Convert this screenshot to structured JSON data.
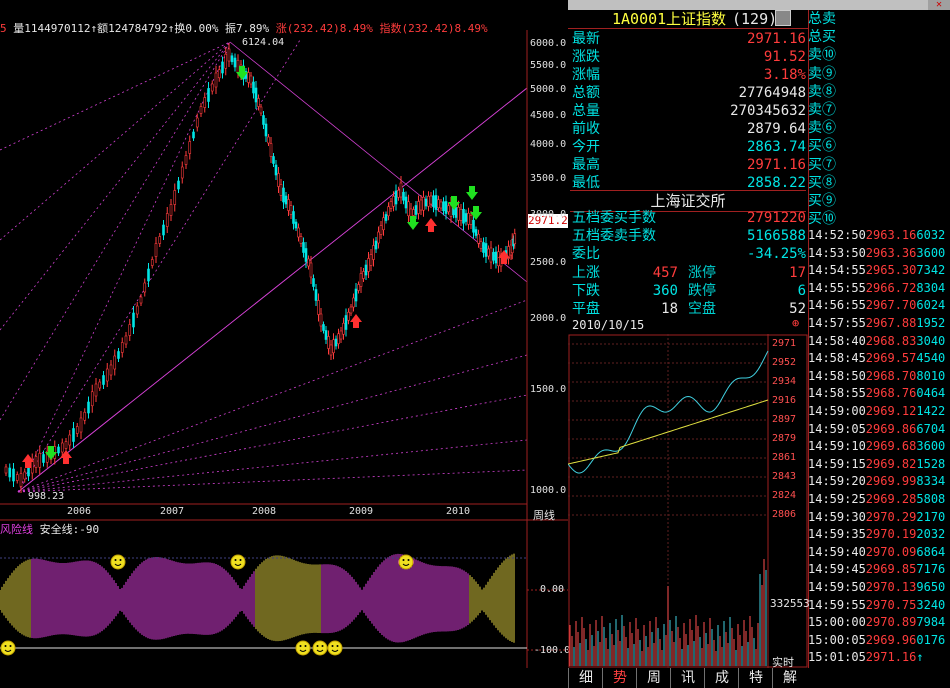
{
  "header": {
    "stats_line_left": "5",
    "stats_line": "量1144970112↑额124784792↑换0.00% 振7.89%",
    "change_line": "涨(232.42)8.49% 指数(232.42)8.49%",
    "peak_label": "6124.04",
    "low_label": "998.23"
  },
  "main_chart": {
    "price_axis": [
      "6000.0",
      "5500.0",
      "5000.0",
      "4500.0",
      "4000.0",
      "3500.0",
      "3000.0",
      "2500.0",
      "2000.0",
      "1500.0",
      "1000.0"
    ],
    "price_tag": "2971.2",
    "years": [
      "2006",
      "2007",
      "2008",
      "2009",
      "2010"
    ],
    "period_label": "周线",
    "indicator_title": "风险线",
    "indicator_safe": "安全线:-90",
    "indicator_axis": [
      "0.00",
      "-100.0"
    ],
    "colors": {
      "up": "#ff3c3c",
      "down": "#00e5e5",
      "fan": "#e040e0",
      "bg": "#000000"
    }
  },
  "quote": {
    "code": "1A0001",
    "name": "上证指数",
    "count": "(129)",
    "rows": [
      {
        "k": "最新",
        "v": "2971.16",
        "c": "red"
      },
      {
        "k": "涨跌",
        "v": "91.52",
        "c": "red"
      },
      {
        "k": "涨幅",
        "v": "3.18%",
        "c": "red"
      },
      {
        "k": "总额",
        "v": "27764948",
        "c": "white"
      },
      {
        "k": "总量",
        "v": "270345632",
        "c": "white"
      },
      {
        "k": "前收",
        "v": "2879.64",
        "c": "white"
      },
      {
        "k": "今开",
        "v": "2863.74",
        "c": "cyan"
      },
      {
        "k": "最高",
        "v": "2971.16",
        "c": "red"
      },
      {
        "k": "最低",
        "v": "2858.22",
        "c": "cyan"
      }
    ],
    "exchange": "上海证交所",
    "rows2": [
      {
        "k": "五档委买手数",
        "v": "2791220",
        "c": "red"
      },
      {
        "k": "五档委卖手数",
        "v": "5166588",
        "c": "cyan"
      },
      {
        "k": "委比",
        "v": "-34.25%",
        "c": "cyan"
      }
    ],
    "breadth": [
      {
        "k1": "上涨",
        "v1": "457",
        "c1": "red",
        "k2": "涨停",
        "v2": "17",
        "c2": "red"
      },
      {
        "k1": "下跌",
        "v1": "360",
        "c1": "cyan",
        "k2": "跌停",
        "v2": "6",
        "c2": "cyan"
      },
      {
        "k1": "平盘",
        "v1": "18",
        "c1": "white",
        "k2": "空盘",
        "v2": "52",
        "c2": "white"
      }
    ],
    "date": "2010/10/15"
  },
  "orderbook": [
    "总卖",
    "总买",
    "卖⑩",
    "卖⑨",
    "卖⑧",
    "卖⑦",
    "卖⑥",
    "买⑥",
    "买⑦",
    "买⑧",
    "买⑨",
    "买⑩"
  ],
  "ticks": [
    {
      "t": "14:52:50",
      "p": "2963.16",
      "v": "6032"
    },
    {
      "t": "14:53:50",
      "p": "2963.36",
      "v": "3600"
    },
    {
      "t": "14:54:55",
      "p": "2965.30",
      "v": "7342"
    },
    {
      "t": "14:55:55",
      "p": "2966.72",
      "v": "8304"
    },
    {
      "t": "14:56:55",
      "p": "2967.70",
      "v": "6024"
    },
    {
      "t": "14:57:55",
      "p": "2967.88",
      "v": "1952"
    },
    {
      "t": "14:58:40",
      "p": "2968.83",
      "v": "3040"
    },
    {
      "t": "14:58:45",
      "p": "2969.57",
      "v": "4540"
    },
    {
      "t": "14:58:50",
      "p": "2968.70",
      "v": "8010"
    },
    {
      "t": "14:58:55",
      "p": "2968.76",
      "v": "0464"
    },
    {
      "t": "14:59:00",
      "p": "2969.12",
      "v": "1422"
    },
    {
      "t": "14:59:05",
      "p": "2969.86",
      "v": "6704"
    },
    {
      "t": "14:59:10",
      "p": "2969.68",
      "v": "3600"
    },
    {
      "t": "14:59:15",
      "p": "2969.82",
      "v": "1528"
    },
    {
      "t": "14:59:20",
      "p": "2969.99",
      "v": "8334"
    },
    {
      "t": "14:59:25",
      "p": "2969.28",
      "v": "5808"
    },
    {
      "t": "14:59:30",
      "p": "2970.29",
      "v": "2170"
    },
    {
      "t": "14:59:35",
      "p": "2970.19",
      "v": "2032"
    },
    {
      "t": "14:59:40",
      "p": "2970.09",
      "v": "6864"
    },
    {
      "t": "14:59:45",
      "p": "2969.85",
      "v": "7176"
    },
    {
      "t": "14:59:50",
      "p": "2970.13",
      "v": "9650"
    },
    {
      "t": "14:59:55",
      "p": "2970.75",
      "v": "3240"
    },
    {
      "t": "15:00:00",
      "p": "2970.89",
      "v": "7984"
    },
    {
      "t": "15:00:05",
      "p": "2969.96",
      "v": "0176"
    },
    {
      "t": "15:01:05",
      "p": "2971.16",
      "v": "↑"
    }
  ],
  "intraday": {
    "axis": [
      "2971",
      "2952",
      "2934",
      "2916",
      "2897",
      "2879",
      "2861",
      "2843",
      "2824",
      "2806"
    ],
    "vol_label": "332553",
    "realtime": "实时"
  },
  "tabs": [
    "细",
    "势",
    "周",
    "讯",
    "成",
    "特",
    "解"
  ]
}
